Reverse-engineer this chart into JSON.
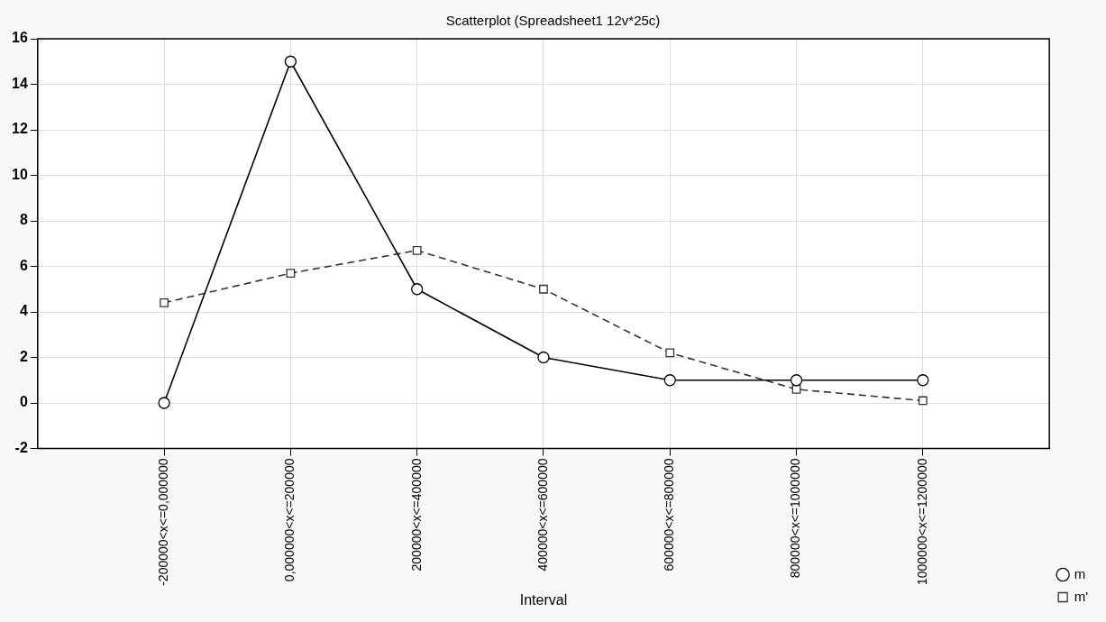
{
  "chart_data": {
    "type": "line",
    "title": "Scatterplot (Spreadsheet1 12v*25c)",
    "xlabel": "Interval",
    "categories": [
      "-200000<x<=0,000000",
      "0,000000<x<=200000",
      "200000<x<=400000",
      "400000<x<=600000",
      "600000<x<=800000",
      "800000<x<=1000000",
      "1000000<x<=1200000"
    ],
    "series": [
      {
        "name": "m",
        "color": "#000000",
        "marker": "circle",
        "line_style": "solid",
        "values": [
          0,
          15,
          5,
          2,
          1,
          1,
          1
        ]
      },
      {
        "name": "m'",
        "color": "#333333",
        "marker": "square",
        "line_style": "dashed",
        "values": [
          4.4,
          5.7,
          6.7,
          5.0,
          2.2,
          0.6,
          0.1
        ]
      }
    ],
    "ylim": [
      -2,
      16
    ],
    "yticks": [
      -2,
      0,
      2,
      4,
      6,
      8,
      10,
      12,
      14,
      16
    ],
    "grid": true,
    "legend": "bottom right"
  }
}
